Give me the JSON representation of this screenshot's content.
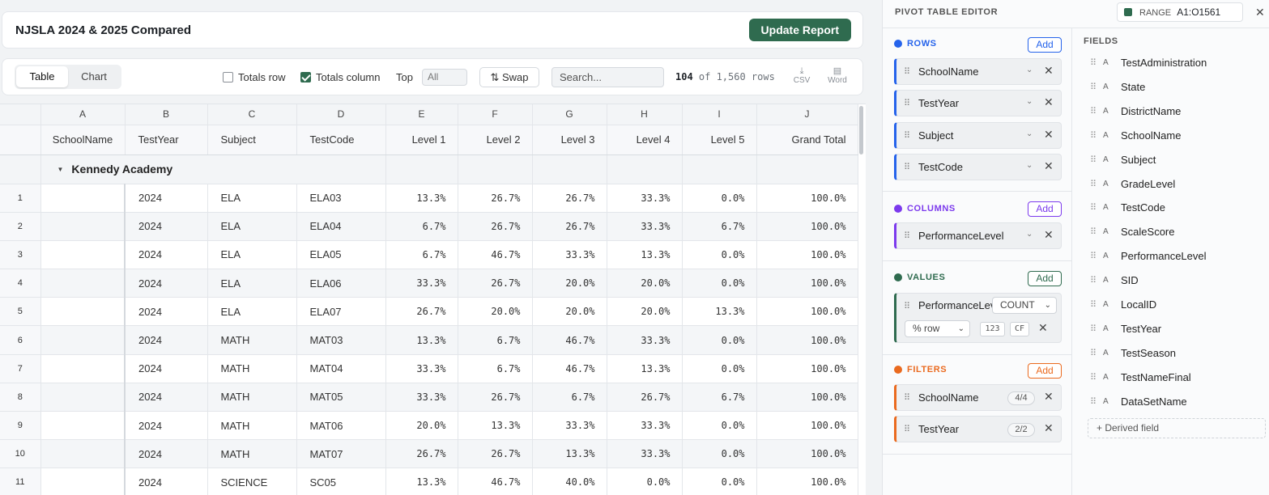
{
  "header": {
    "title": "NJSLA 2024 & 2025 Compared",
    "update_label": "Update Report"
  },
  "toolbar": {
    "tabs": [
      {
        "label": "Table"
      },
      {
        "label": "Chart"
      }
    ],
    "totals_row_label": "Totals row",
    "totals_col_label": "Totals column",
    "top_label": "Top",
    "top_value": "All",
    "swap_label": "Swap",
    "search_placeholder": "Search...",
    "row_count_shown": "104",
    "row_count_rest": " of 1,560 rows",
    "csv_label": "CSV",
    "word_label": "Word"
  },
  "table": {
    "col_letters": [
      "A",
      "B",
      "C",
      "D",
      "E",
      "F",
      "G",
      "H",
      "I",
      "J"
    ],
    "headers": [
      "SchoolName",
      "TestYear",
      "Subject",
      "TestCode",
      "Level 1",
      "Level 2",
      "Level 3",
      "Level 4",
      "Level 5",
      "Grand Total"
    ],
    "group": "Kennedy Academy",
    "rows": [
      {
        "n": "1",
        "year": "2024",
        "subject": "ELA",
        "code": "ELA03",
        "l1": "13.3%",
        "l2": "26.7%",
        "l3": "26.7%",
        "l4": "33.3%",
        "l5": "0.0%",
        "gt": "100.0%"
      },
      {
        "n": "2",
        "year": "2024",
        "subject": "ELA",
        "code": "ELA04",
        "l1": "6.7%",
        "l2": "26.7%",
        "l3": "26.7%",
        "l4": "33.3%",
        "l5": "6.7%",
        "gt": "100.0%"
      },
      {
        "n": "3",
        "year": "2024",
        "subject": "ELA",
        "code": "ELA05",
        "l1": "6.7%",
        "l2": "46.7%",
        "l3": "33.3%",
        "l4": "13.3%",
        "l5": "0.0%",
        "gt": "100.0%"
      },
      {
        "n": "4",
        "year": "2024",
        "subject": "ELA",
        "code": "ELA06",
        "l1": "33.3%",
        "l2": "26.7%",
        "l3": "20.0%",
        "l4": "20.0%",
        "l5": "0.0%",
        "gt": "100.0%"
      },
      {
        "n": "5",
        "year": "2024",
        "subject": "ELA",
        "code": "ELA07",
        "l1": "26.7%",
        "l2": "20.0%",
        "l3": "20.0%",
        "l4": "20.0%",
        "l5": "13.3%",
        "gt": "100.0%"
      },
      {
        "n": "6",
        "year": "2024",
        "subject": "MATH",
        "code": "MAT03",
        "l1": "13.3%",
        "l2": "6.7%",
        "l3": "46.7%",
        "l4": "33.3%",
        "l5": "0.0%",
        "gt": "100.0%"
      },
      {
        "n": "7",
        "year": "2024",
        "subject": "MATH",
        "code": "MAT04",
        "l1": "33.3%",
        "l2": "6.7%",
        "l3": "46.7%",
        "l4": "13.3%",
        "l5": "0.0%",
        "gt": "100.0%"
      },
      {
        "n": "8",
        "year": "2024",
        "subject": "MATH",
        "code": "MAT05",
        "l1": "33.3%",
        "l2": "26.7%",
        "l3": "6.7%",
        "l4": "26.7%",
        "l5": "6.7%",
        "gt": "100.0%"
      },
      {
        "n": "9",
        "year": "2024",
        "subject": "MATH",
        "code": "MAT06",
        "l1": "20.0%",
        "l2": "13.3%",
        "l3": "33.3%",
        "l4": "33.3%",
        "l5": "0.0%",
        "gt": "100.0%"
      },
      {
        "n": "10",
        "year": "2024",
        "subject": "MATH",
        "code": "MAT07",
        "l1": "26.7%",
        "l2": "26.7%",
        "l3": "13.3%",
        "l4": "33.3%",
        "l5": "0.0%",
        "gt": "100.0%"
      },
      {
        "n": "11",
        "year": "2024",
        "subject": "SCIENCE",
        "code": "SC05",
        "l1": "13.3%",
        "l2": "46.7%",
        "l3": "40.0%",
        "l4": "0.0%",
        "l5": "0.0%",
        "gt": "100.0%"
      }
    ]
  },
  "editor": {
    "title": "PIVOT TABLE EDITOR",
    "range_label": "RANGE",
    "range_value": "A1:O1561",
    "add_label": "Add",
    "rows_title": "ROWS",
    "rows": [
      "SchoolName",
      "TestYear",
      "Subject",
      "TestCode"
    ],
    "columns_title": "COLUMNS",
    "columns": [
      "PerformanceLevel"
    ],
    "values_title": "VALUES",
    "value_field": "PerformanceLevel",
    "value_agg": "COUNT",
    "value_show_as": "% row",
    "value_fmt": "123",
    "value_cf": "CF",
    "filters_title": "FILTERS",
    "filters": [
      {
        "name": "SchoolName",
        "badge": "4/4"
      },
      {
        "name": "TestYear",
        "badge": "2/2"
      }
    ],
    "fields_title": "FIELDS",
    "field_type": "A",
    "fields": [
      "TestAdministration",
      "State",
      "DistrictName",
      "SchoolName",
      "Subject",
      "GradeLevel",
      "TestCode",
      "ScaleScore",
      "PerformanceLevel",
      "SID",
      "LocalID",
      "TestYear",
      "TestSeason",
      "TestNameFinal",
      "DataSetName"
    ],
    "derived_label": "+ Derived field"
  },
  "colors": {
    "accent": "#2f6b4f",
    "rows": "#2563eb",
    "columns": "#7c3aed",
    "values": "#2f6b4f",
    "filters": "#ea6a1f"
  }
}
